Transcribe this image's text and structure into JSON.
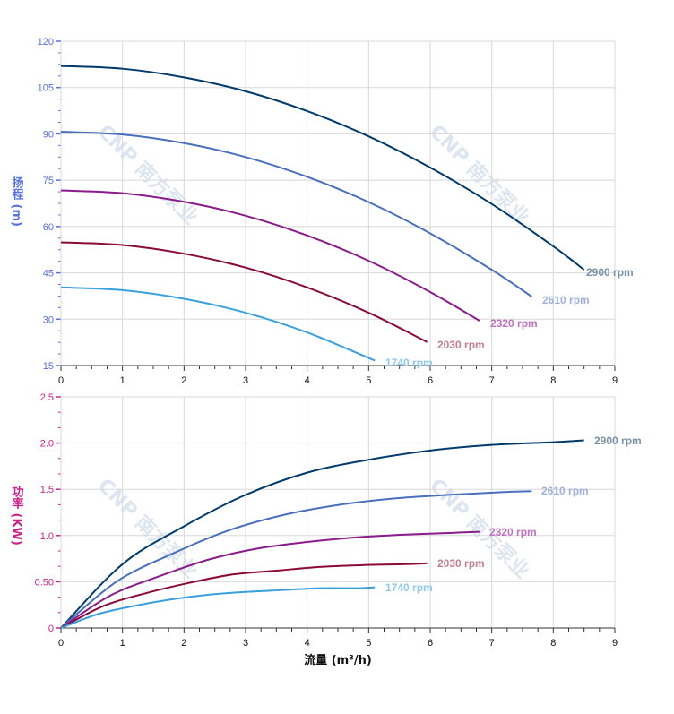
{
  "chart_data": [
    {
      "type": "line",
      "title": "",
      "ylabel": "扬程 (m)",
      "xlabel": "",
      "xlim": [
        0,
        9
      ],
      "ylim": [
        15,
        120
      ],
      "xticks": [
        "0",
        "1",
        "2",
        "3",
        "4",
        "5",
        "6",
        "7",
        "8",
        "9"
      ],
      "yticks": [
        "15",
        "30",
        "45",
        "60",
        "75",
        "90",
        "105",
        "120"
      ],
      "grid": true,
      "axis_color": "#5570e0",
      "series": [
        {
          "name": "2900 rpm",
          "color": "#003a6b",
          "label_color": "#7a93a8",
          "x": [
            0,
            1,
            2,
            3,
            4,
            5,
            6,
            7,
            8,
            8.5
          ],
          "y": [
            112,
            111.1,
            108.3,
            103.8,
            97.4,
            89.2,
            79.1,
            67.3,
            53.6,
            46.0
          ]
        },
        {
          "name": "2610 rpm",
          "color": "#4a6fbf",
          "label_color": "#a0b0dd",
          "x": [
            0,
            1,
            2,
            3,
            4,
            5,
            6,
            7,
            7.65
          ],
          "y": [
            90.7,
            89.8,
            87.0,
            82.5,
            76.1,
            67.9,
            57.8,
            46.0,
            37.3
          ]
        },
        {
          "name": "2320 rpm",
          "color": "#8b1a8b",
          "label_color": "#c070c0",
          "x": [
            0,
            1,
            2,
            3,
            4,
            5,
            6,
            6.8
          ],
          "y": [
            71.7,
            70.8,
            68.0,
            63.5,
            57.1,
            48.9,
            38.8,
            29.5
          ]
        },
        {
          "name": "2030 rpm",
          "color": "#8b0a3a",
          "label_color": "#c08090",
          "x": [
            0,
            1,
            2,
            3,
            4,
            5,
            5.95
          ],
          "y": [
            54.9,
            54.0,
            51.2,
            46.7,
            40.3,
            32.1,
            22.6
          ]
        },
        {
          "name": "1740 rpm",
          "color": "#3aa0dd",
          "label_color": "#90c8ee",
          "x": [
            0,
            1,
            2,
            3,
            4,
            5.1
          ],
          "y": [
            40.3,
            39.4,
            36.6,
            32.1,
            25.7,
            16.6
          ]
        }
      ]
    },
    {
      "type": "line",
      "title": "",
      "ylabel": "功率 (KW)",
      "xlabel": "流量 (m³/h)",
      "xlim": [
        0,
        9
      ],
      "ylim": [
        0,
        2.5
      ],
      "xticks": [
        "0",
        "1",
        "2",
        "3",
        "4",
        "5",
        "6",
        "7",
        "8",
        "9"
      ],
      "yticks": [
        "0",
        "0.50",
        "1.0",
        "1.5",
        "2.0",
        "2.5"
      ],
      "grid": true,
      "axis_color": "#cc2288",
      "series": [
        {
          "name": "2900 rpm",
          "color": "#003a6b",
          "label_color": "#7a93a8",
          "x": [
            0,
            1,
            2,
            3,
            4,
            5,
            6,
            7,
            8,
            8.5
          ],
          "y": [
            0,
            0.69,
            1.1,
            1.44,
            1.68,
            1.82,
            1.92,
            1.98,
            2.01,
            2.03
          ]
        },
        {
          "name": "2610 rpm",
          "color": "#4a6fbf",
          "label_color": "#a0b0dd",
          "x": [
            0,
            0.9,
            1.8,
            2.7,
            3.6,
            4.5,
            5.4,
            6.3,
            7.2,
            7.65
          ],
          "y": [
            0,
            0.5,
            0.8,
            1.05,
            1.22,
            1.33,
            1.4,
            1.44,
            1.47,
            1.48
          ]
        },
        {
          "name": "2320 rpm",
          "color": "#8b1a8b",
          "label_color": "#c070c0",
          "x": [
            0,
            0.8,
            1.6,
            2.4,
            3.2,
            4.0,
            4.8,
            5.6,
            6.4,
            6.8
          ],
          "y": [
            0,
            0.35,
            0.56,
            0.74,
            0.86,
            0.93,
            0.98,
            1.01,
            1.03,
            1.04
          ]
        },
        {
          "name": "2030 rpm",
          "color": "#8b0a3a",
          "label_color": "#c08090",
          "x": [
            0,
            0.7,
            1.4,
            2.1,
            2.8,
            3.5,
            4.2,
            4.9,
            5.6,
            5.95
          ],
          "y": [
            0,
            0.24,
            0.38,
            0.49,
            0.58,
            0.62,
            0.66,
            0.68,
            0.69,
            0.7
          ]
        },
        {
          "name": "1740 rpm",
          "color": "#3aa0dd",
          "label_color": "#90c8ee",
          "x": [
            0,
            0.6,
            1.2,
            1.8,
            2.4,
            3.0,
            3.6,
            4.2,
            4.8,
            5.1
          ],
          "y": [
            0,
            0.15,
            0.24,
            0.31,
            0.36,
            0.39,
            0.41,
            0.43,
            0.43,
            0.44
          ]
        }
      ]
    }
  ],
  "watermark": "CNP 南方泵业"
}
